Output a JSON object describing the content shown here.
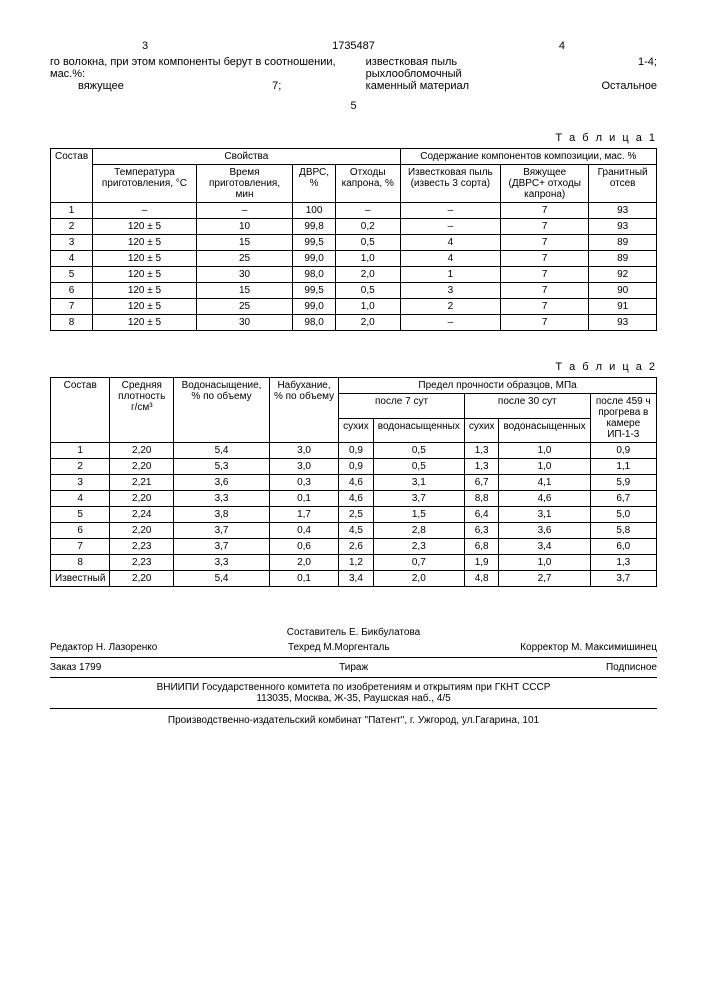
{
  "patentNumber": "1735487",
  "pageLeft": "3",
  "pageRight": "4",
  "centerNum": "5",
  "intro": {
    "leftText": "го волокна, при этом компоненты берут в соотношении, мас.%:",
    "leftIndent": "вяжущее",
    "leftIndentVal": "7;",
    "rightLabel1": "известковая пыль",
    "rightVal1": "1-4;",
    "rightLabel2": "рыхлообломочный",
    "rightLabel3": "каменный материал",
    "rightVal3": "Остальное"
  },
  "table1": {
    "caption": "Т а б л и ц а  1",
    "headers": {
      "c1": "Состав",
      "g1": "Свойства",
      "g2": "Содержание компонентов композиции, мас. %",
      "h1": "Температура приготовления, °С",
      "h2": "Время приготовления, мин",
      "h3": "ДВРС, %",
      "h4": "Отходы капрона, %",
      "h5": "Известковая пыль (известь 3 сорта)",
      "h6": "Вяжущее (ДВРС+ отходы капрона)",
      "h7": "Гранитный отсев"
    },
    "rows": [
      [
        "1",
        "–",
        "–",
        "100",
        "–",
        "–",
        "7",
        "93"
      ],
      [
        "2",
        "120 ± 5",
        "10",
        "99,8",
        "0,2",
        "–",
        "7",
        "93"
      ],
      [
        "3",
        "120 ± 5",
        "15",
        "99,5",
        "0,5",
        "4",
        "7",
        "89"
      ],
      [
        "4",
        "120 ± 5",
        "25",
        "99,0",
        "1,0",
        "4",
        "7",
        "89"
      ],
      [
        "5",
        "120 ± 5",
        "30",
        "98,0",
        "2,0",
        "1",
        "7",
        "92"
      ],
      [
        "6",
        "120 ± 5",
        "15",
        "99,5",
        "0,5",
        "3",
        "7",
        "90"
      ],
      [
        "7",
        "120 ± 5",
        "25",
        "99,0",
        "1,0",
        "2",
        "7",
        "91"
      ],
      [
        "8",
        "120 ± 5",
        "30",
        "98,0",
        "2,0",
        "–",
        "7",
        "93"
      ]
    ]
  },
  "table2": {
    "caption": "Т а б л и ц а  2",
    "headers": {
      "c1": "Состав",
      "c2": "Средняя плотность г/см³",
      "c3": "Водонасыщение, % по объему",
      "c4": "Набухание, % по объему",
      "g1": "Предел прочности образцов, МПа",
      "g2": "после 7 сут",
      "g3": "после 30 сут",
      "g4": "после 459 ч прогрева в камере ИП-1-3",
      "sub1": "сухих",
      "sub2": "водонасыщенных",
      "sub3": "сухих",
      "sub4": "водонасыщенных"
    },
    "rows": [
      [
        "1",
        "2,20",
        "5,4",
        "3,0",
        "0,9",
        "0,5",
        "1,3",
        "1,0",
        "0,9"
      ],
      [
        "2",
        "2,20",
        "5,3",
        "3,0",
        "0,9",
        "0,5",
        "1,3",
        "1,0",
        "1,1"
      ],
      [
        "3",
        "2,21",
        "3,6",
        "0,3",
        "4,6",
        "3,1",
        "6,7",
        "4,1",
        "5,9"
      ],
      [
        "4",
        "2,20",
        "3,3",
        "0,1",
        "4,6",
        "3,7",
        "8,8",
        "4,6",
        "6,7"
      ],
      [
        "5",
        "2,24",
        "3,8",
        "1,7",
        "2,5",
        "1,5",
        "6,4",
        "3,1",
        "5,0"
      ],
      [
        "6",
        "2,20",
        "3,7",
        "0,4",
        "4,5",
        "2,8",
        "6,3",
        "3,6",
        "5,8"
      ],
      [
        "7",
        "2,23",
        "3,7",
        "0,6",
        "2,6",
        "2,3",
        "6,8",
        "3,4",
        "6,0"
      ],
      [
        "8",
        "2,23",
        "3,3",
        "2,0",
        "1,2",
        "0,7",
        "1,9",
        "1,0",
        "1,3"
      ],
      [
        "Известный",
        "2,20",
        "5,4",
        "0,1",
        "3,4",
        "2,0",
        "4,8",
        "2,7",
        "3,7"
      ]
    ]
  },
  "footer": {
    "composer": "Составитель Е. Бикбулатова",
    "editor": "Редактор Н. Лазоренко",
    "techred": "Техред М.Моргенталь",
    "corrector": "Корректор М. Максимишинец",
    "order": "Заказ 1799",
    "tirazh": "Тираж",
    "podpis": "Подписное",
    "org": "ВНИИПИ Государственного комитета по изобретениям и открытиям при ГКНТ СССР",
    "address": "113035, Москва, Ж-35, Раушская наб., 4/5",
    "pub": "Производственно-издательский комбинат \"Патент\", г. Ужгород, ул.Гагарина, 101"
  }
}
